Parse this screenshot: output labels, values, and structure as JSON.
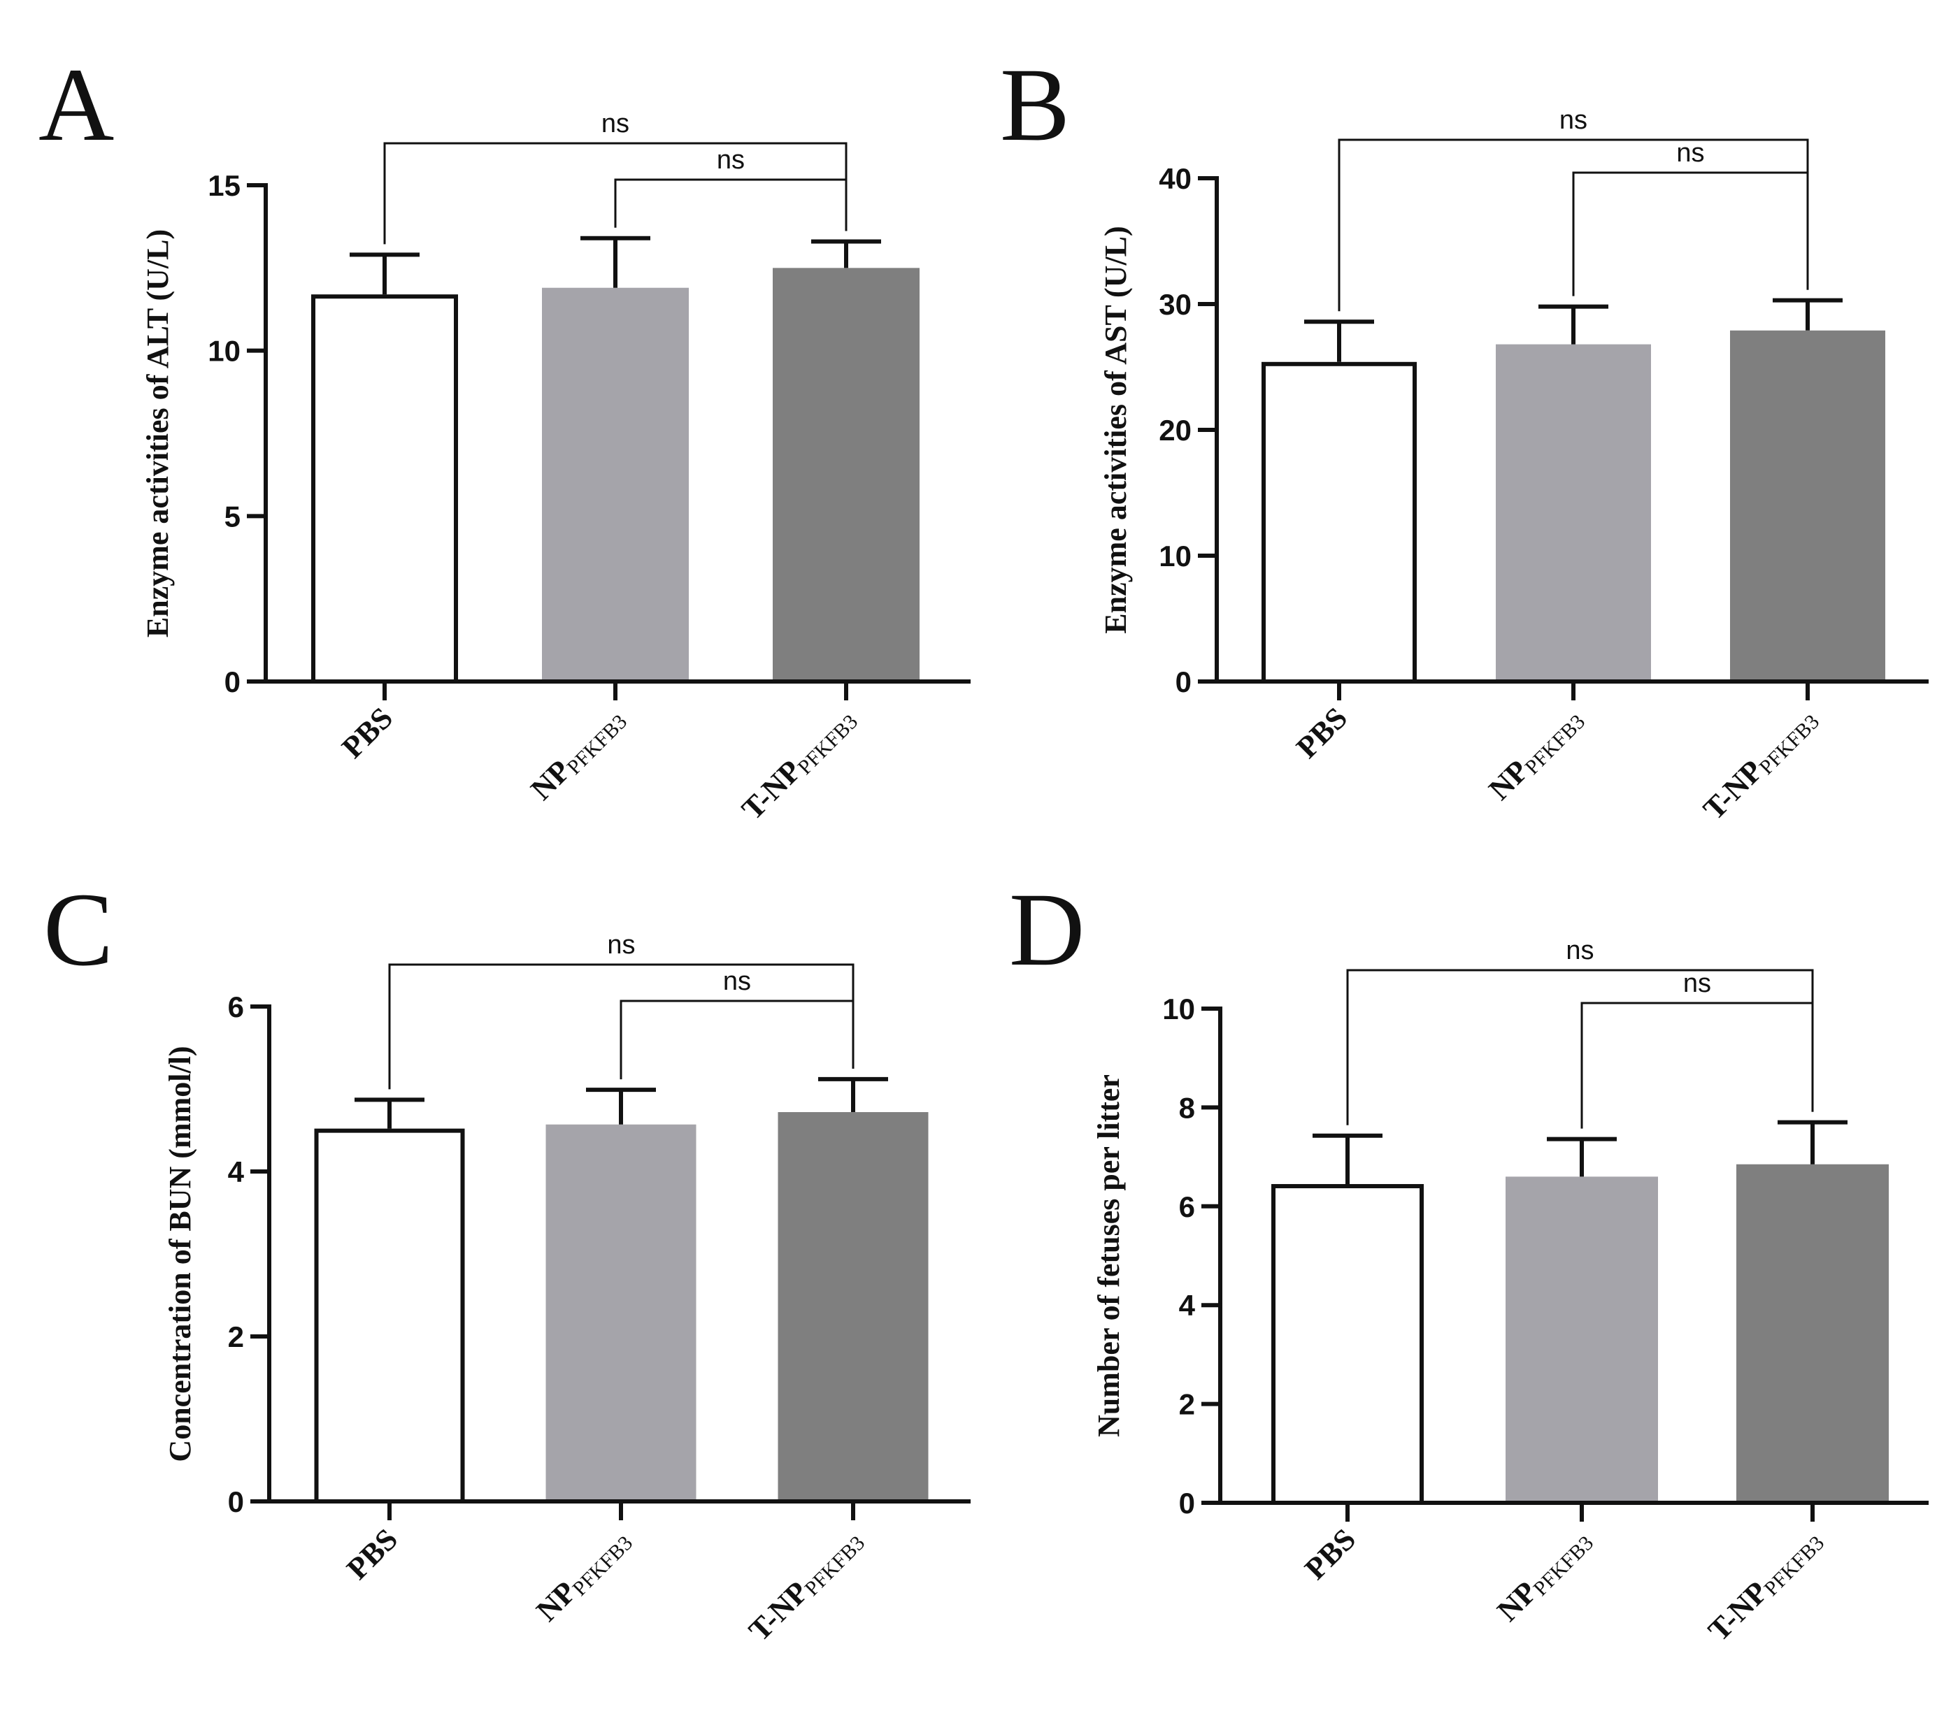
{
  "colors": {
    "axis": "#111111",
    "bar_fill": [
      "#ffffff",
      "#a5a4aa",
      "#7f7f7f"
    ],
    "bar_stroke": [
      "#111111",
      "none",
      "none"
    ]
  },
  "chart_data": [
    {
      "panel_label": "A",
      "type": "bar",
      "categories": [
        {
          "main": "PBS",
          "sub": ""
        },
        {
          "main": "NP",
          "sub": "PFKFB3"
        },
        {
          "main": "T-NP",
          "sub": "PFKFB3"
        }
      ],
      "values": [
        11.7,
        11.9,
        12.5
      ],
      "errors": [
        1.2,
        1.5,
        0.8
      ],
      "ylabel": "Enzyme activities of ALT (U/L)",
      "ylim": [
        0,
        15
      ],
      "yticks": [
        0,
        5,
        10,
        15
      ],
      "yticklabels": [
        "0",
        "5",
        "10",
        "15"
      ],
      "comparisons": [
        {
          "from": 0,
          "to": 2,
          "label": "ns"
        },
        {
          "from": 1,
          "to": 2,
          "label": "ns"
        }
      ]
    },
    {
      "panel_label": "B",
      "type": "bar",
      "categories": [
        {
          "main": "PBS",
          "sub": ""
        },
        {
          "main": "NP",
          "sub": "PFKFB3"
        },
        {
          "main": "T-NP",
          "sub": "PFKFB3"
        }
      ],
      "values": [
        25.4,
        26.8,
        27.9
      ],
      "errors": [
        3.2,
        3.0,
        2.4
      ],
      "ylabel": "Enzyme activities of AST (U/L)",
      "ylim": [
        0,
        40
      ],
      "yticks": [
        0,
        10,
        20,
        30,
        40
      ],
      "yticklabels": [
        "0",
        "10",
        "20",
        "30",
        "40"
      ],
      "comparisons": [
        {
          "from": 0,
          "to": 2,
          "label": "ns"
        },
        {
          "from": 1,
          "to": 2,
          "label": "ns"
        }
      ]
    },
    {
      "panel_label": "C",
      "type": "bar",
      "categories": [
        {
          "main": "PBS",
          "sub": ""
        },
        {
          "main": "NP",
          "sub": "PFKFB3"
        },
        {
          "main": "T-NP",
          "sub": "PFKFB3"
        }
      ],
      "values": [
        4.52,
        4.57,
        4.72
      ],
      "errors": [
        0.35,
        0.42,
        0.4
      ],
      "ylabel": "Concentration of BUN (mmol/l)",
      "ylim": [
        0,
        6
      ],
      "yticks": [
        0,
        2,
        4,
        6
      ],
      "yticklabels": [
        "0",
        "2",
        "4",
        "6"
      ],
      "comparisons": [
        {
          "from": 0,
          "to": 2,
          "label": "ns"
        },
        {
          "from": 1,
          "to": 2,
          "label": "ns"
        }
      ]
    },
    {
      "panel_label": "D",
      "type": "bar",
      "categories": [
        {
          "main": "PBS",
          "sub": ""
        },
        {
          "main": "NP",
          "sub": "PFKFB3"
        },
        {
          "main": "T-NP",
          "sub": "PFKFB3"
        }
      ],
      "values": [
        6.45,
        6.6,
        6.85
      ],
      "errors": [
        0.98,
        0.76,
        0.85
      ],
      "ylabel": "Number of fetuses per litter",
      "ylim": [
        0,
        10
      ],
      "yticks": [
        0,
        2,
        4,
        6,
        8,
        10
      ],
      "yticklabels": [
        "0",
        "2",
        "4",
        "6",
        "8",
        "10"
      ],
      "comparisons": [
        {
          "from": 0,
          "to": 2,
          "label": "ns"
        },
        {
          "from": 1,
          "to": 2,
          "label": "ns"
        }
      ]
    }
  ]
}
